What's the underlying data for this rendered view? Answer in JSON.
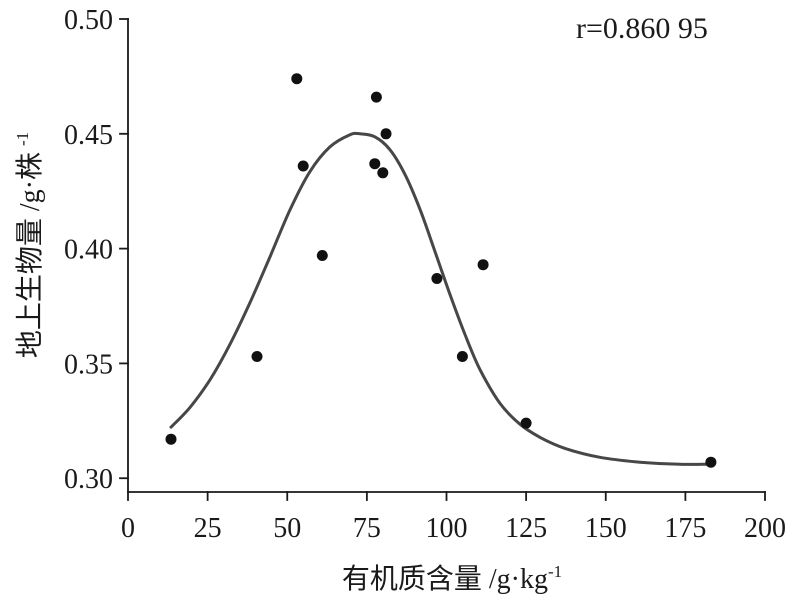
{
  "chart_data": {
    "type": "scatter",
    "annotation": "r=0.860 95",
    "xlabel": {
      "text": "有机质含量",
      "unit": " /g·kg",
      "unit_sup": "-1"
    },
    "ylabel": {
      "text": "地上生物量",
      "unit": " /g·株",
      "unit_sup": "-1"
    },
    "xlim": [
      0,
      200
    ],
    "ylim": [
      0.294,
      0.5
    ],
    "xticks": [
      "0",
      "25",
      "50",
      "75",
      "100",
      "125",
      "150",
      "175",
      "200"
    ],
    "yticks": [
      "0.30",
      "0.35",
      "0.40",
      "0.45",
      "0.50"
    ],
    "grid": false,
    "points": {
      "x": [
        13.5,
        40.5,
        53,
        55,
        61,
        77.5,
        78,
        80,
        81,
        97,
        105,
        111.5,
        125,
        183
      ],
      "y": [
        0.317,
        0.353,
        0.474,
        0.436,
        0.397,
        0.437,
        0.466,
        0.433,
        0.45,
        0.387,
        0.353,
        0.393,
        0.324,
        0.307
      ]
    },
    "curve": {
      "x": [
        13.5,
        19.5,
        25.8,
        32.0,
        38.3,
        44.6,
        50.9,
        57.1,
        63.4,
        69.7,
        72.8,
        77.5,
        82.3,
        87.0,
        91.7,
        96.4,
        101.1,
        105.8,
        110.5,
        116.8,
        123.1,
        129.4,
        137.2,
        148.2,
        160.8,
        173.3,
        182.7
      ],
      "y": [
        0.3222,
        0.3309,
        0.343,
        0.3583,
        0.3765,
        0.3965,
        0.417,
        0.4335,
        0.4443,
        0.4496,
        0.45,
        0.4487,
        0.443,
        0.4322,
        0.417,
        0.3987,
        0.38,
        0.3626,
        0.3474,
        0.3326,
        0.3235,
        0.3178,
        0.313,
        0.3091,
        0.307,
        0.3061,
        0.3061
      ]
    },
    "colors": {
      "points": "#111111",
      "curve": "#474747",
      "axes": "#1a1a1a",
      "text": "#1a1a1a"
    }
  }
}
